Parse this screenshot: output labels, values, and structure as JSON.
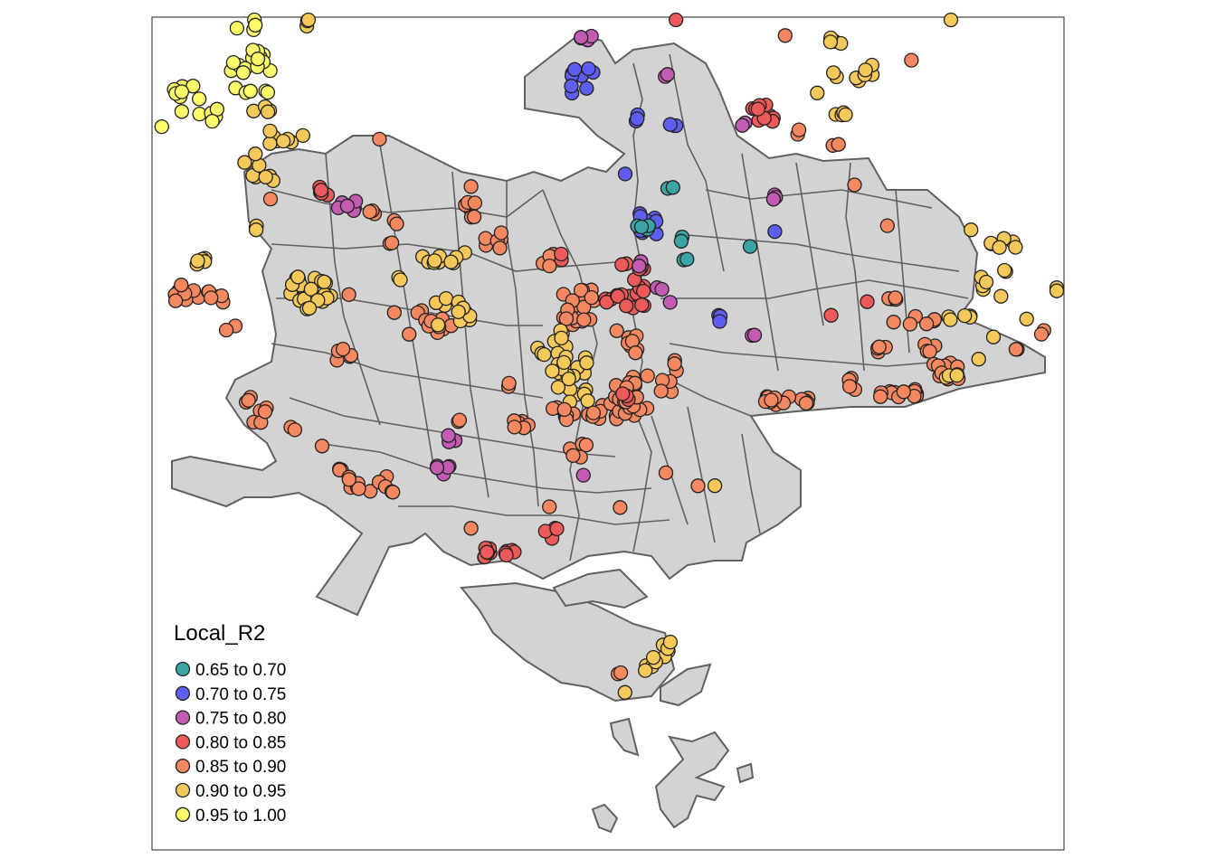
{
  "legend": {
    "title": "Local_R2",
    "items": [
      {
        "label": "0.65 to 0.70",
        "color": "#3aa5a5"
      },
      {
        "label": "0.70 to 0.75",
        "color": "#5e5ef0"
      },
      {
        "label": "0.75 to 0.80",
        "color": "#c25bb1"
      },
      {
        "label": "0.80 to 0.85",
        "color": "#ee5a5a"
      },
      {
        "label": "0.85 to 0.90",
        "color": "#f58860"
      },
      {
        "label": "0.90 to 0.95",
        "color": "#f5c85a"
      },
      {
        "label": "0.95 to 1.00",
        "color": "#fcfc6a"
      }
    ]
  },
  "colors": {
    "land": "#d3d3d3",
    "boundary": "#606060",
    "point_outline": "#222222",
    "frame": "#444444"
  },
  "map_points": {
    "class_index_note": "",
    "clusters": []
  }
}
